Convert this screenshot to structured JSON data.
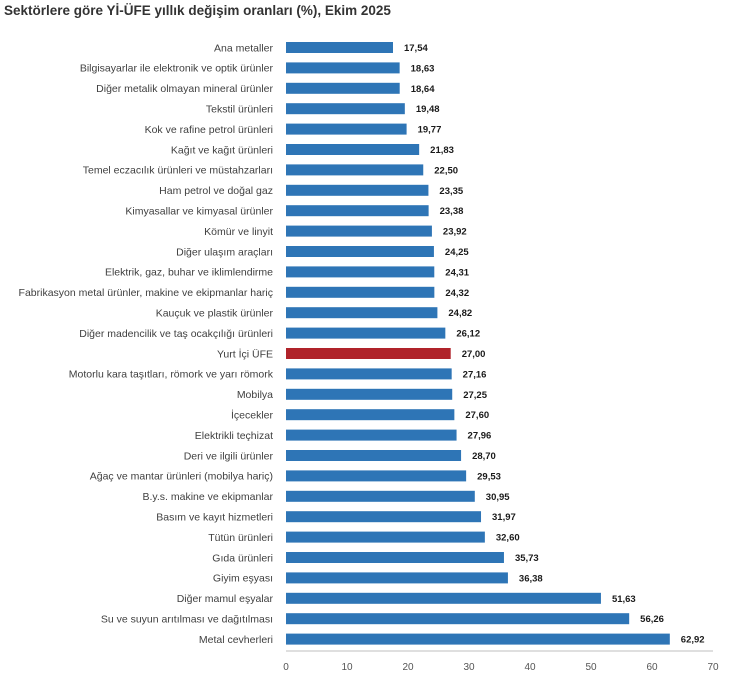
{
  "chart_data": {
    "type": "bar",
    "orientation": "horizontal",
    "title": "Sektörlere göre Yİ-ÜFE yıllık değişim oranları (%), Ekim 2025",
    "xlabel": "",
    "ylabel": "",
    "xlim": [
      0,
      70
    ],
    "x_ticks": [
      "0",
      "10",
      "20",
      "30",
      "40",
      "50",
      "60",
      "70"
    ],
    "grid": false,
    "legend": "none",
    "colors": {
      "default": "#2e75b6",
      "highlight": "#b0232a"
    },
    "highlight_category": "Yurt İçi ÜFE",
    "categories": [
      "Ana metaller",
      "Bilgisayarlar ile elektronik ve optik ürünler",
      "Diğer metalik olmayan mineral ürünler",
      "Tekstil ürünleri",
      "Kok ve rafine petrol ürünleri",
      "Kağıt ve kağıt ürünleri",
      "Temel eczacılık ürünleri ve müstahzarları",
      "Ham petrol ve doğal gaz",
      "Kimyasallar ve kimyasal ürünler",
      "Kömür ve linyit",
      "Diğer ulaşım araçları",
      "Elektrik, gaz, buhar ve iklimlendirme",
      "Fabrikasyon metal ürünler, makine ve ekipmanlar hariç",
      "Kauçuk ve plastik ürünler",
      "Diğer madencilik ve taş ocakçılığı ürünleri",
      "Yurt İçi ÜFE",
      "Motorlu kara taşıtları, römork ve yarı römork",
      "Mobilya",
      "İçecekler",
      "Elektrikli teçhizat",
      "Deri ve ilgili ürünler",
      "Ağaç ve mantar ürünleri (mobilya hariç)",
      "B.y.s. makine ve ekipmanlar",
      "Basım ve kayıt hizmetleri",
      "Tütün ürünleri",
      "Gıda ürünleri",
      "Giyim eşyası",
      "Diğer mamul eşyalar",
      "Su ve suyun arıtılması ve dağıtılması",
      "Metal cevherleri"
    ],
    "values": [
      17.54,
      18.63,
      18.64,
      19.48,
      19.77,
      21.83,
      22.5,
      23.35,
      23.38,
      23.92,
      24.25,
      24.31,
      24.32,
      24.82,
      26.12,
      27.0,
      27.16,
      27.25,
      27.6,
      27.96,
      28.7,
      29.53,
      30.95,
      31.97,
      32.6,
      35.73,
      36.38,
      51.63,
      56.26,
      62.92
    ],
    "value_labels": [
      "17,54",
      "18,63",
      "18,64",
      "19,48",
      "19,77",
      "21,83",
      "22,50",
      "23,35",
      "23,38",
      "23,92",
      "24,25",
      "24,31",
      "24,32",
      "24,82",
      "26,12",
      "27,00",
      "27,16",
      "27,25",
      "27,60",
      "27,96",
      "28,70",
      "29,53",
      "30,95",
      "31,97",
      "32,60",
      "35,73",
      "36,38",
      "51,63",
      "56,26",
      "62,92"
    ]
  }
}
